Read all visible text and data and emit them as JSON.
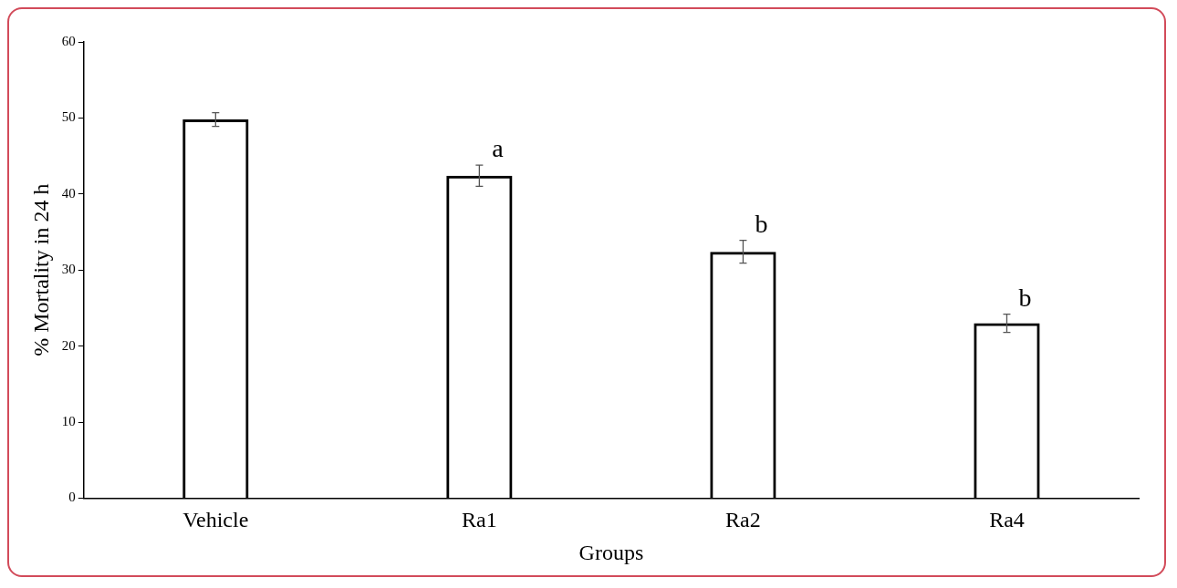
{
  "chart_data": {
    "type": "bar",
    "xlabel": "Groups",
    "ylabel": "% Mortality in 24 h",
    "categories": [
      "Vehicle",
      "Ra1",
      "Ra2",
      "Ra4"
    ],
    "values": [
      49.8,
      42.4,
      32.4,
      23.0
    ],
    "errors": [
      0.9,
      1.4,
      1.5,
      1.2
    ],
    "color": "#000000",
    "ylim": [
      0,
      60
    ],
    "yticks": [
      0,
      10,
      20,
      30,
      40,
      50,
      60
    ],
    "grid": false,
    "legend": false,
    "annotations": [
      {
        "text": "a",
        "x": "Ra1",
        "y": 42.4
      },
      {
        "text": "b",
        "x": "Ra2",
        "y": 32.4
      },
      {
        "text": "b",
        "x": "Ra4",
        "y": 23.0
      }
    ]
  }
}
